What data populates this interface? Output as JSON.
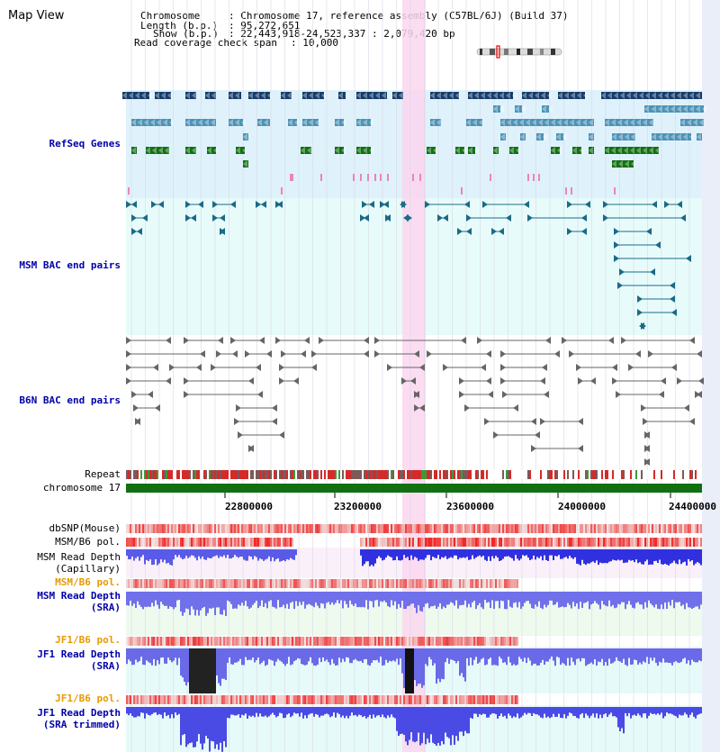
{
  "window_title": "Map View",
  "info": {
    "chromosome_key": "Chromosome",
    "chromosome_value": "Chromosome 17, reference assembly (C57BL/6J) (Build 37)",
    "length_key": "Length (b.p.)",
    "length_value": "95,272,651",
    "show_key": "Show (b.p.)",
    "show_value": "22,443,918-24,523,337 : 2,079,420 bp",
    "coverage_key": "Read coverage check span",
    "coverage_value": "10,000"
  },
  "tracks": {
    "refseq": "RefSeq Genes",
    "msm_bac": "MSM BAC end pairs",
    "b6n_bac": "B6N BAC end pairs",
    "repeat": "Repeat",
    "chromosome": "chromosome 17",
    "dbsnp": "dbSNP(Mouse)",
    "msm_b6_pol_1": "MSM/B6 pol.",
    "msm_depth_cap_1": "MSM Read Depth",
    "msm_depth_cap_2": "(Capillary)",
    "msm_b6_pol_2": "MSM/B6 pol.",
    "msm_depth_sra_1": "MSM Read Depth",
    "msm_depth_sra_2": "(SRA)",
    "jf1_b6_pol_1": "JF1/B6 pol.",
    "jf1_depth_sra_1": "JF1 Read Depth",
    "jf1_depth_sra_2": "(SRA)",
    "jf1_b6_pol_2": "JF1/B6 pol.",
    "jf1_depth_trim_1": "JF1 Read Depth",
    "jf1_depth_trim_2": "(SRA trimmed)"
  },
  "axis": {
    "ticks": [
      "22800000",
      "23200000",
      "23600000",
      "24000000",
      "24400000"
    ]
  },
  "colors": {
    "refseq_bg": "#dff2fb",
    "pair_bg": "#e8fbfb",
    "highlight": "#fbd6ef",
    "gene_navy": "#173c6b",
    "gene_blue": "#4d93b7",
    "gene_green": "#127012",
    "chrom_green": "#127012",
    "depth_blue": "#2a2ae0",
    "pol_red": "#e83030",
    "label_blue": "#0000aa",
    "label_orange": "#e79a00"
  }
}
